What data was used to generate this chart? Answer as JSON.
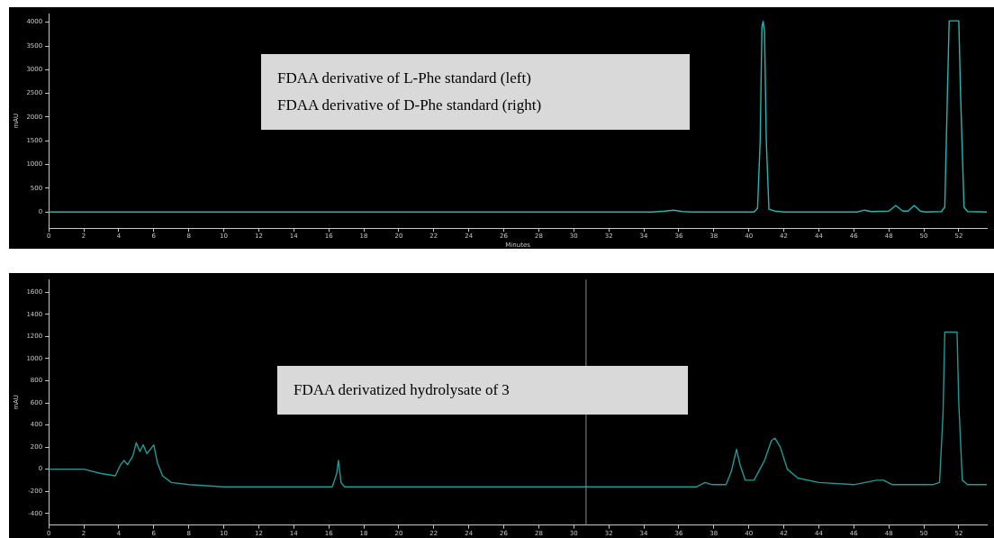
{
  "chart_data": [
    {
      "type": "line",
      "xlabel": "Minutes",
      "ylabel": "mAU",
      "annotations": [
        "FDAA derivative of L-Phe standard (left)",
        "FDAA derivative of D-Phe standard (right)"
      ],
      "xlim": [
        0,
        53.6
      ],
      "xticks": [
        0,
        2,
        4,
        6,
        8,
        10,
        12,
        14,
        16,
        18,
        20,
        22,
        24,
        26,
        28,
        30,
        32,
        34,
        36,
        38,
        40,
        42,
        44,
        46,
        48,
        50,
        52
      ],
      "ylim": [
        -340,
        4180
      ],
      "yticks": [
        0,
        500,
        1000,
        1500,
        2000,
        2500,
        3000,
        3500,
        4000
      ],
      "grid": false,
      "legend": false,
      "marker": "none",
      "line_style": "solid",
      "series": [
        {
          "color": "#1fb8b2",
          "x": [
            0,
            34.5,
            35.2,
            35.7,
            36.2,
            36.8,
            40.3,
            40.5,
            40.65,
            40.75,
            40.82,
            40.9,
            41.0,
            41.15,
            41.5,
            42,
            46.2,
            46.6,
            47,
            48,
            48.4,
            48.8,
            49.1,
            49.45,
            49.8,
            50.1,
            51,
            51.2,
            51.35,
            51.45,
            52.0,
            52.1,
            52.3,
            52.5,
            53.6
          ],
          "values": [
            0,
            0,
            20,
            40,
            10,
            0,
            0,
            80,
            1500,
            3900,
            4020,
            3800,
            1500,
            60,
            20,
            0,
            0,
            40,
            10,
            20,
            140,
            20,
            20,
            140,
            20,
            0,
            10,
            100,
            2500,
            4030,
            4030,
            2500,
            100,
            10,
            0
          ]
        }
      ]
    },
    {
      "type": "line",
      "ylabel": "mAU",
      "annotations": [
        "FDAA derivatized hydrolysate of 3"
      ],
      "xlim": [
        0,
        53.6
      ],
      "xticks": [
        0,
        2,
        4,
        6,
        8,
        10,
        12,
        14,
        16,
        18,
        20,
        22,
        24,
        26,
        28,
        30,
        32,
        34,
        36,
        38,
        40,
        42,
        44,
        46,
        48,
        50,
        52
      ],
      "ylim": [
        -505,
        1715
      ],
      "yticks": [
        -400,
        -200,
        0,
        200,
        400,
        600,
        800,
        1000,
        1200,
        1400,
        1600
      ],
      "grid": false,
      "legend": false,
      "marker": "none",
      "line_style": "solid",
      "ref_lines": [
        {
          "axis": "x",
          "value": 30.7,
          "label": null,
          "color": "#8a8a8a"
        }
      ],
      "series": [
        {
          "color": "#1a9c98",
          "x": [
            0,
            1,
            2,
            3,
            3.8,
            4.1,
            4.3,
            4.5,
            4.8,
            5.0,
            5.2,
            5.4,
            5.6,
            5.9,
            6.0,
            6.2,
            6.5,
            7,
            8,
            10,
            16.2,
            16.45,
            16.55,
            16.7,
            16.9,
            37,
            37.5,
            37.9,
            38.7,
            39,
            39.3,
            39.5,
            39.8,
            40.3,
            40.9,
            41.3,
            41.5,
            41.8,
            42.2,
            42.8,
            44,
            46,
            47.3,
            47.7,
            48.2,
            49,
            50.5,
            50.9,
            51.1,
            51.2,
            51.9,
            52.0,
            52.2,
            52.5,
            53.6
          ],
          "values": [
            0,
            0,
            0,
            -40,
            -60,
            40,
            80,
            40,
            120,
            240,
            160,
            220,
            140,
            200,
            220,
            60,
            -60,
            -120,
            -140,
            -160,
            -160,
            -40,
            80,
            -120,
            -160,
            -160,
            -120,
            -140,
            -140,
            -20,
            180,
            40,
            -100,
            -100,
            80,
            260,
            280,
            200,
            0,
            -80,
            -120,
            -140,
            -100,
            -100,
            -140,
            -140,
            -140,
            -120,
            500,
            1240,
            1240,
            600,
            -100,
            -140,
            -140
          ]
        }
      ]
    }
  ]
}
